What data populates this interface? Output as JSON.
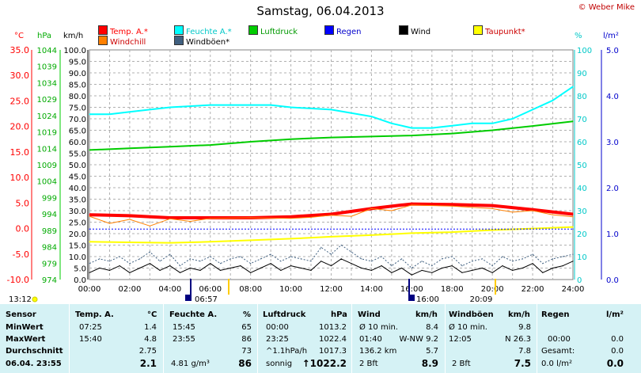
{
  "title": "Samstag, 06.04.2013",
  "copyright": "© Weber Mike",
  "units": {
    "temp": "°C",
    "pressure": "hPa",
    "wind": "km/h",
    "humidity": "%",
    "rain": "l/m²"
  },
  "legend": [
    {
      "label": "Temp. A.*",
      "color": "#ff0000",
      "text_color": "#ff0000"
    },
    {
      "label": "Feuchte A.*",
      "color": "#00ffff",
      "text_color": "#00c8c8"
    },
    {
      "label": "Luftdruck",
      "color": "#00cc00",
      "text_color": "#009900"
    },
    {
      "label": "Regen",
      "color": "#0000ff",
      "text_color": "#0000cc"
    },
    {
      "label": "Wind",
      "color": "#000000",
      "text_color": "#000000"
    },
    {
      "label": "Taupunkt*",
      "color": "#ffff00",
      "text_color": "#cc0000"
    },
    {
      "label": "Windchill",
      "color": "#ff8000",
      "text_color": "#cc0000"
    },
    {
      "label": "Windböen*",
      "color": "#406080",
      "text_color": "#000000"
    }
  ],
  "axis_labels": {
    "x_ticks": [
      "00:00",
      "02:00",
      "04:00",
      "06:00",
      "08:00",
      "10:00",
      "12:00",
      "14:00",
      "16:00",
      "18:00",
      "20:00",
      "22:00",
      "24:00"
    ],
    "temp_ticks": [
      "35.0",
      "30.0",
      "25.0",
      "20.0",
      "15.0",
      "10.0",
      "5.0",
      "0.0",
      "-5.0",
      "-10.0"
    ],
    "pressure_ticks": [
      "1044",
      "1039",
      "1034",
      "1029",
      "1024",
      "1019",
      "1014",
      "1009",
      "1004",
      "999",
      "994",
      "989",
      "984",
      "979",
      "974"
    ],
    "wind_ticks": [
      "100.0",
      "95.0",
      "90.0",
      "85.0",
      "80.0",
      "75.0",
      "70.0",
      "65.0",
      "60.0",
      "55.0",
      "50.0",
      "45.0",
      "40.0",
      "35.0",
      "30.0",
      "25.0",
      "20.0",
      "15.0",
      "10.0",
      "5.0",
      "0.0"
    ],
    "humidity_ticks": [
      "100",
      "90",
      "80",
      "70",
      "60",
      "50",
      "40",
      "30",
      "20",
      "10",
      "0"
    ],
    "rain_ticks": [
      "5.0",
      "4.0",
      "3.0",
      "2.0",
      "1.0",
      "0.0"
    ]
  },
  "time_markers": {
    "left_time": "13:12",
    "sunrise": "06:57",
    "noon": "16:00",
    "sunset": "20:09"
  },
  "chart_data": {
    "type": "line",
    "x_unit": "hours",
    "x_range": [
      0,
      24
    ],
    "ylim_temp": [
      -10,
      35
    ],
    "ylim_wind": [
      0,
      100
    ],
    "ylim_humidity": [
      0,
      100
    ],
    "ylim_pressure": [
      974,
      1044
    ],
    "ylim_rain": [
      0,
      5
    ],
    "grid": true,
    "series": [
      {
        "name": "Temp. A.*",
        "axis": "temp",
        "color": "#ff0000",
        "width": 4,
        "x": [
          0,
          2,
          4,
          6,
          8,
          10,
          12,
          14,
          15.5,
          16,
          18,
          20,
          22,
          24
        ],
        "y": [
          2.7,
          2.5,
          2.1,
          2.1,
          2.1,
          2.3,
          2.8,
          3.9,
          4.6,
          4.8,
          4.7,
          4.5,
          3.7,
          2.8
        ]
      },
      {
        "name": "Feuchte A.*",
        "axis": "humidity",
        "color": "#00ffff",
        "width": 2,
        "x": [
          0,
          1,
          2,
          4,
          6,
          7,
          8,
          9,
          10,
          12,
          14,
          15,
          16,
          17,
          18,
          19,
          20,
          21,
          22,
          23,
          23.5,
          24
        ],
        "y": [
          72,
          72,
          73,
          75,
          76,
          76,
          76,
          76,
          75,
          74,
          71,
          68,
          66,
          66,
          67,
          68,
          68,
          70,
          74,
          78,
          81,
          84
        ]
      },
      {
        "name": "Luftdruck",
        "axis": "pressure",
        "color": "#00cc00",
        "width": 2,
        "x": [
          0,
          2,
          4,
          6,
          8,
          10,
          12,
          14,
          16,
          18,
          20,
          22,
          24
        ],
        "y": [
          1013.5,
          1014,
          1014.5,
          1015,
          1016,
          1016.8,
          1017.3,
          1017.6,
          1017.9,
          1018.5,
          1019.5,
          1020.8,
          1022.2
        ]
      },
      {
        "name": "Taupunkt*",
        "axis": "temp",
        "color": "#ffff00",
        "width": 2,
        "x": [
          0,
          2,
          4,
          6,
          8,
          10,
          12,
          14,
          16,
          18,
          20,
          22,
          24
        ],
        "y": [
          -2.6,
          -2.7,
          -2.8,
          -2.6,
          -2.3,
          -2.0,
          -1.6,
          -1.3,
          -0.9,
          -0.7,
          -0.3,
          0.0,
          0.3
        ]
      },
      {
        "name": "Windchill",
        "axis": "temp",
        "color": "#ff8000",
        "width": 1,
        "x": [
          0,
          1,
          2,
          3,
          4,
          5,
          6,
          8,
          10,
          11,
          12,
          13,
          14,
          15,
          16,
          18,
          20,
          21,
          22,
          23,
          24
        ],
        "y": [
          2.4,
          1.0,
          1.8,
          0.5,
          1.9,
          1.4,
          2.0,
          2.1,
          2.0,
          2.2,
          2.6,
          2.4,
          3.9,
          3.5,
          4.6,
          4.4,
          3.9,
          3.2,
          3.5,
          2.7,
          2.3
        ]
      },
      {
        "name": "Wind",
        "axis": "wind",
        "color": "#000000",
        "width": 1,
        "x": [
          0,
          0.5,
          1,
          1.5,
          2,
          2.5,
          3,
          3.5,
          4,
          4.5,
          5,
          5.5,
          6,
          6.5,
          7,
          7.5,
          8,
          8.5,
          9,
          9.5,
          10,
          10.5,
          11,
          11.5,
          12,
          12.5,
          13,
          13.5,
          14,
          14.5,
          15,
          15.5,
          16,
          16.5,
          17,
          17.5,
          18,
          18.5,
          19,
          19.5,
          20,
          20.5,
          21,
          21.5,
          22,
          22.5,
          23,
          23.5,
          24
        ],
        "y": [
          3,
          5,
          4,
          6,
          3,
          5,
          7,
          4,
          6,
          3,
          5,
          4,
          7,
          4,
          5,
          6,
          3,
          5,
          7,
          4,
          6,
          5,
          4,
          8,
          6,
          9,
          7,
          5,
          4,
          6,
          3,
          5,
          2,
          4,
          3,
          5,
          6,
          3,
          4,
          5,
          3,
          6,
          4,
          5,
          7,
          3,
          5,
          6,
          8
        ]
      },
      {
        "name": "Windböen*",
        "axis": "wind",
        "color": "#406080",
        "width": 1,
        "dashed": true,
        "x": [
          0,
          0.5,
          1,
          1.5,
          2,
          2.5,
          3,
          3.5,
          4,
          4.5,
          5,
          5.5,
          6,
          6.5,
          7,
          7.5,
          8,
          8.5,
          9,
          9.5,
          10,
          10.5,
          11,
          11.5,
          12,
          12.5,
          13,
          13.5,
          14,
          14.5,
          15,
          15.5,
          16,
          16.5,
          17,
          17.5,
          18,
          18.5,
          19,
          19.5,
          20,
          20.5,
          21,
          21.5,
          22,
          22.5,
          23,
          23.5,
          24
        ],
        "y": [
          7,
          9,
          8,
          10,
          7,
          9,
          12,
          8,
          11,
          6,
          9,
          8,
          10,
          7,
          9,
          10,
          7,
          9,
          11,
          8,
          10,
          9,
          8,
          14,
          11,
          15,
          12,
          9,
          8,
          10,
          6,
          9,
          5,
          8,
          6,
          9,
          10,
          6,
          8,
          9,
          6,
          10,
          8,
          9,
          11,
          7,
          9,
          10,
          11
        ]
      },
      {
        "name": "Regen",
        "axis": "rain",
        "color": "#0000ff",
        "width": 1,
        "dashed": true,
        "x": [
          0,
          24
        ],
        "y": [
          1.1,
          1.1
        ]
      }
    ]
  },
  "table": {
    "headers": {
      "sensor": "Sensor",
      "temp": "Temp. A.",
      "temp_unit": "°C",
      "hum": "Feuchte A.",
      "hum_unit": "%",
      "press": "Luftdruck",
      "press_unit": "hPa",
      "wind": "Wind",
      "wind_unit": "km/h",
      "gust": "Windböen",
      "gust_unit": "km/h",
      "rain": "Regen",
      "rain_unit": "l/m²"
    },
    "rows": [
      {
        "label": "MinWert",
        "c1": "07:25",
        "c2": "1.4",
        "c3": "15:45",
        "c4": "65",
        "c5": "00:00",
        "c6": "1013.2",
        "c7": "Ø 10 min.",
        "c8": "8.4",
        "c9": "Ø 10 min.",
        "c10": "9.8",
        "c11": "",
        "c12": ""
      },
      {
        "label": "MaxWert",
        "c1": "15:40",
        "c2": "4.8",
        "c3": "23:55",
        "c4": "86",
        "c5": "23:25",
        "c6": "1022.4",
        "c7": "01:40",
        "c8": "W-NW 9.2",
        "c9": "12:05",
        "c10": "N 26.3",
        "c11": "00:00",
        "c12": "0.0"
      },
      {
        "label": "Durchschnitt",
        "c1": "",
        "c2": "2.75",
        "c3": "",
        "c4": "73",
        "c5": "^1.1hPa/h",
        "c6": "1017.3",
        "c7": "136.2 km",
        "c8": "5.7",
        "c9": "",
        "c10": "7.8",
        "c11": "Gesamt:",
        "c12": "0.0"
      },
      {
        "label": "06.04. 23:55",
        "c1": "",
        "c2": "2.1",
        "c3": "4.81 g/m³",
        "c4": "86",
        "c5": "sonnig",
        "c6": "↑1022.2",
        "c7": "2 Bft",
        "c8": "8.9",
        "c9": "2 Bft",
        "c10": "7.5",
        "c11": "0.0 l/m²",
        "c12": "0.0"
      }
    ]
  }
}
